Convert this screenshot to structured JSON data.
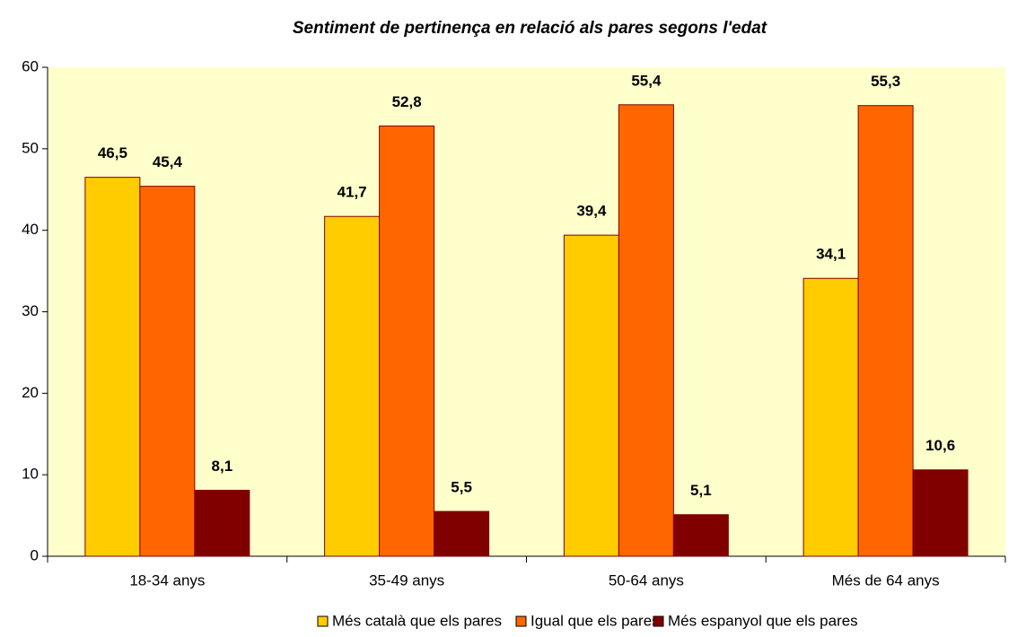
{
  "chart_data": {
    "type": "bar",
    "title": "Sentiment de pertinença en relació als pares segons l'edat",
    "categories": [
      "18-34 anys",
      "35-49 anys",
      "50-64 anys",
      "Més de 64 anys"
    ],
    "series": [
      {
        "name": "Més català que els pares",
        "color": "#FFCC00",
        "values": [
          46.5,
          41.7,
          39.4,
          34.1
        ],
        "value_labels": [
          "46,5",
          "41,7",
          "39,4",
          "34,1"
        ]
      },
      {
        "name": "Igual que els pares",
        "color": "#FF6600",
        "values": [
          45.4,
          52.8,
          55.4,
          55.3
        ],
        "value_labels": [
          "45,4",
          "52,8",
          "55,4",
          "55,3"
        ]
      },
      {
        "name": "Més espanyol que els pares",
        "color": "#800000",
        "values": [
          8.1,
          5.5,
          5.1,
          10.6
        ],
        "value_labels": [
          "8,1",
          "5,5",
          "5,1",
          "10,6"
        ]
      }
    ],
    "ylim": [
      0,
      60
    ],
    "yticks": [
      0,
      10,
      20,
      30,
      40,
      50,
      60
    ],
    "legend": "bottom"
  }
}
